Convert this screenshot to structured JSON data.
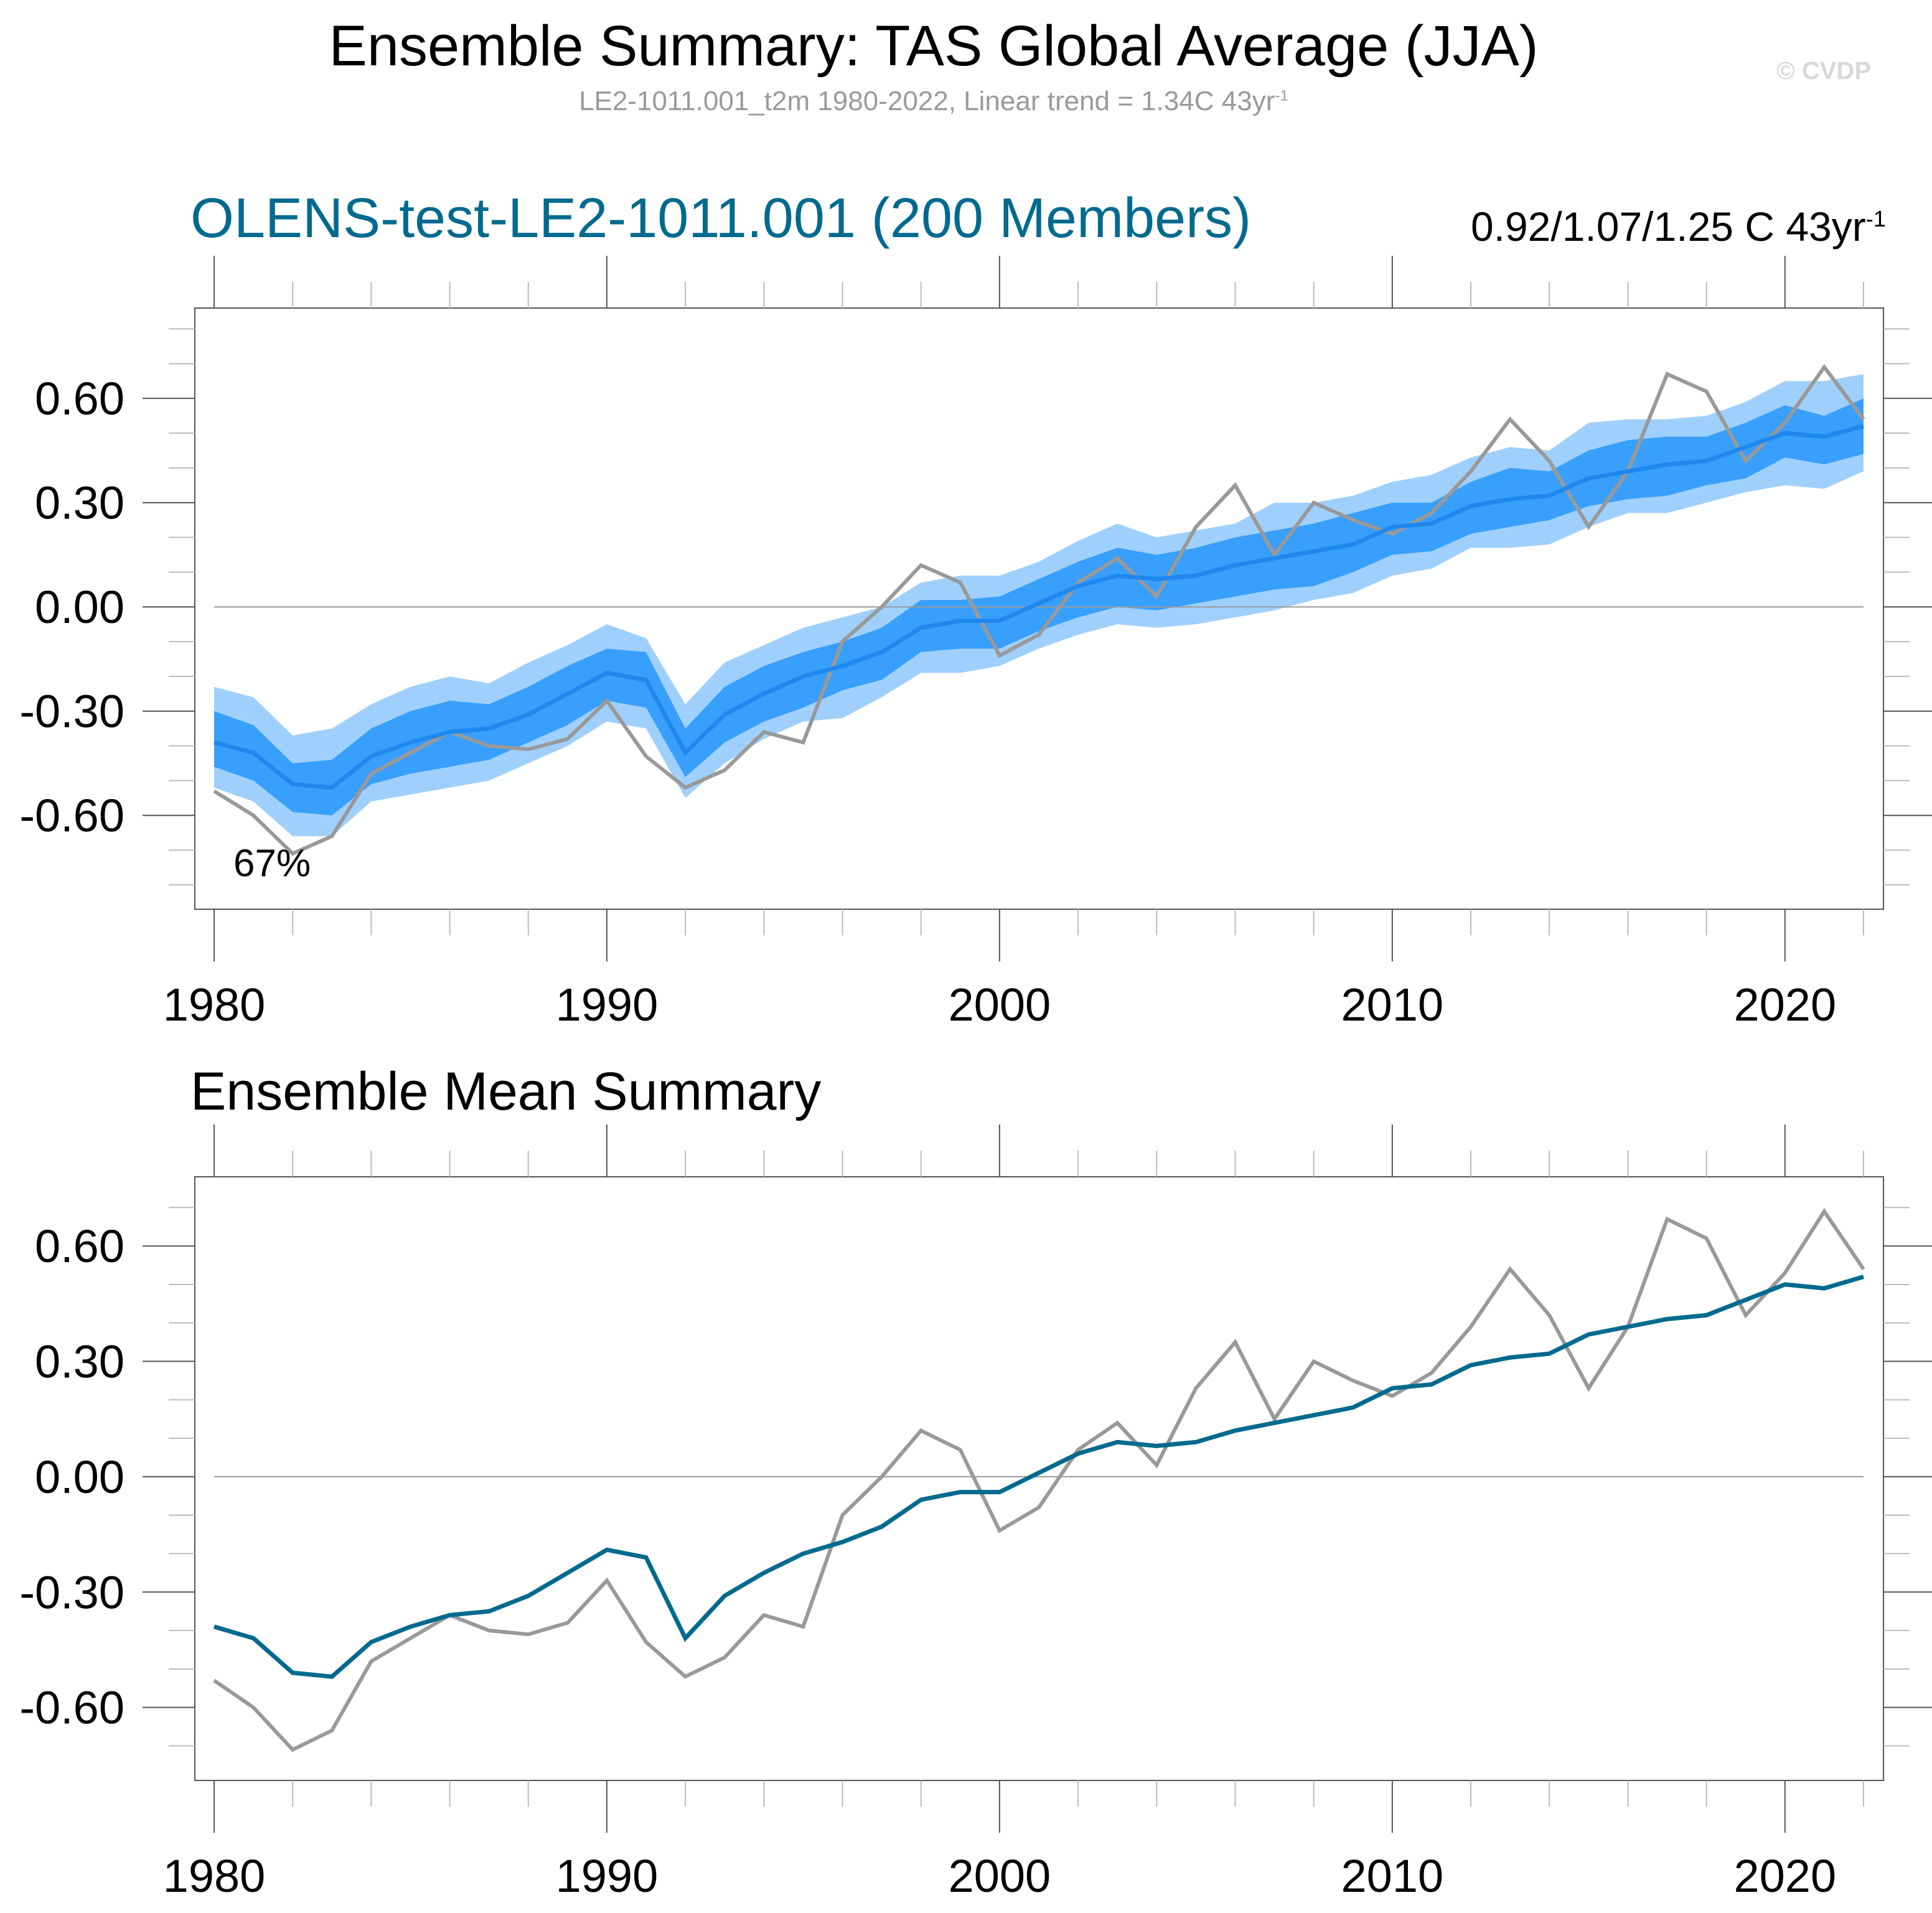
{
  "header": {
    "title": "Ensemble Summary: TAS Global Average (JJA)",
    "subtitle_text": "LE2-1011.001_t2m 1980-2022, Linear trend = 1.34C 43yr",
    "subtitle_exponent": "-1",
    "watermark": "© CVDP"
  },
  "colors": {
    "outer_band": "#9fd0fd",
    "inner_band": "#389ffc",
    "ensemble_mean_top": "#1e88f0",
    "ensemble_mean_bottom": "#006a8e",
    "observations": "#999999",
    "zero_line": "#9a9a9a",
    "panel1_title": "#006a8e"
  },
  "chart_data": [
    {
      "type": "area",
      "title": "OLENS-test-LE2-1011.001 (200 Members)",
      "trend_text": "0.92/1.07/1.25 C 43yr",
      "trend_exponent": "-1",
      "annotation": "67%",
      "xlabel": "",
      "ylabel": "",
      "xlim": [
        1980,
        2022
      ],
      "ylim": [
        -0.87,
        0.86
      ],
      "x_ticks": [
        1980,
        1990,
        2000,
        2010,
        2020
      ],
      "x_tick_labels": [
        "1980",
        "1990",
        "2000",
        "2010",
        "2020"
      ],
      "y_ticks": [
        -0.6,
        -0.3,
        0.0,
        0.3,
        0.6
      ],
      "y_tick_labels": [
        "-0.60",
        "-0.30",
        "0.00",
        "0.30",
        "0.60"
      ],
      "grid": false,
      "zero_line": true,
      "x": [
        1980,
        1981,
        1982,
        1983,
        1984,
        1985,
        1986,
        1987,
        1988,
        1989,
        1990,
        1991,
        1992,
        1993,
        1994,
        1995,
        1996,
        1997,
        1998,
        1999,
        2000,
        2001,
        2002,
        2003,
        2004,
        2005,
        2006,
        2007,
        2008,
        2009,
        2010,
        2011,
        2012,
        2013,
        2014,
        2015,
        2016,
        2017,
        2018,
        2019,
        2020,
        2021,
        2022
      ],
      "series": [
        {
          "name": "outer_upper",
          "values": [
            -0.23,
            -0.26,
            -0.37,
            -0.35,
            -0.28,
            -0.23,
            -0.2,
            -0.22,
            -0.16,
            -0.11,
            -0.05,
            -0.09,
            -0.28,
            -0.16,
            -0.11,
            -0.06,
            -0.03,
            0.0,
            0.07,
            0.09,
            0.09,
            0.13,
            0.19,
            0.24,
            0.2,
            0.22,
            0.24,
            0.3,
            0.3,
            0.32,
            0.36,
            0.38,
            0.43,
            0.46,
            0.45,
            0.53,
            0.54,
            0.54,
            0.55,
            0.59,
            0.65,
            0.65,
            0.67
          ]
        },
        {
          "name": "inner_upper",
          "values": [
            -0.3,
            -0.34,
            -0.45,
            -0.44,
            -0.35,
            -0.3,
            -0.27,
            -0.28,
            -0.23,
            -0.17,
            -0.12,
            -0.13,
            -0.35,
            -0.23,
            -0.17,
            -0.13,
            -0.1,
            -0.06,
            0.02,
            0.02,
            0.03,
            0.08,
            0.13,
            0.17,
            0.15,
            0.17,
            0.2,
            0.22,
            0.24,
            0.27,
            0.3,
            0.3,
            0.36,
            0.4,
            0.39,
            0.45,
            0.48,
            0.49,
            0.49,
            0.53,
            0.58,
            0.55,
            0.6
          ]
        },
        {
          "name": "inner_lower",
          "values": [
            -0.46,
            -0.5,
            -0.59,
            -0.6,
            -0.51,
            -0.48,
            -0.46,
            -0.44,
            -0.39,
            -0.34,
            -0.27,
            -0.29,
            -0.49,
            -0.39,
            -0.33,
            -0.29,
            -0.24,
            -0.21,
            -0.13,
            -0.12,
            -0.12,
            -0.07,
            -0.03,
            0.0,
            -0.01,
            0.01,
            0.03,
            0.05,
            0.06,
            0.1,
            0.15,
            0.16,
            0.21,
            0.23,
            0.25,
            0.29,
            0.31,
            0.32,
            0.35,
            0.37,
            0.43,
            0.41,
            0.44
          ]
        },
        {
          "name": "outer_lower",
          "values": [
            -0.52,
            -0.56,
            -0.66,
            -0.66,
            -0.56,
            -0.54,
            -0.52,
            -0.5,
            -0.45,
            -0.4,
            -0.33,
            -0.35,
            -0.55,
            -0.45,
            -0.38,
            -0.33,
            -0.32,
            -0.26,
            -0.19,
            -0.19,
            -0.17,
            -0.12,
            -0.08,
            -0.05,
            -0.06,
            -0.05,
            -0.03,
            -0.01,
            0.02,
            0.04,
            0.09,
            0.11,
            0.17,
            0.17,
            0.18,
            0.23,
            0.27,
            0.27,
            0.3,
            0.33,
            0.35,
            0.34,
            0.39
          ]
        },
        {
          "name": "ensemble_mean",
          "values": [
            -0.39,
            -0.42,
            -0.51,
            -0.52,
            -0.43,
            -0.39,
            -0.36,
            -0.35,
            -0.31,
            -0.25,
            -0.19,
            -0.21,
            -0.42,
            -0.31,
            -0.25,
            -0.2,
            -0.17,
            -0.13,
            -0.06,
            -0.04,
            -0.04,
            0.01,
            0.06,
            0.09,
            0.08,
            0.09,
            0.12,
            0.14,
            0.16,
            0.18,
            0.23,
            0.24,
            0.29,
            0.31,
            0.32,
            0.37,
            0.39,
            0.41,
            0.42,
            0.46,
            0.5,
            0.49,
            0.52
          ]
        },
        {
          "name": "observations",
          "values": [
            -0.53,
            -0.6,
            -0.71,
            -0.66,
            -0.48,
            -0.42,
            -0.36,
            -0.4,
            -0.41,
            -0.38,
            -0.27,
            -0.43,
            -0.52,
            -0.47,
            -0.36,
            -0.39,
            -0.1,
            0.0,
            0.12,
            0.07,
            -0.14,
            -0.08,
            0.07,
            0.14,
            0.03,
            0.23,
            0.35,
            0.15,
            0.3,
            0.25,
            0.21,
            0.27,
            0.39,
            0.54,
            0.42,
            0.23,
            0.39,
            0.67,
            0.62,
            0.42,
            0.53,
            0.69,
            0.54
          ]
        }
      ]
    },
    {
      "type": "line",
      "title": "Ensemble Mean Summary",
      "xlabel": "",
      "ylabel": "",
      "xlim": [
        1980,
        2022
      ],
      "ylim": [
        -0.79,
        0.78
      ],
      "x_ticks": [
        1980,
        1990,
        2000,
        2010,
        2020
      ],
      "x_tick_labels": [
        "1980",
        "1990",
        "2000",
        "2010",
        "2020"
      ],
      "y_ticks": [
        -0.6,
        -0.3,
        0.0,
        0.3,
        0.6
      ],
      "y_tick_labels": [
        "-0.60",
        "-0.30",
        "0.00",
        "0.30",
        "0.60"
      ],
      "grid": false,
      "zero_line": true,
      "x": [
        1980,
        1981,
        1982,
        1983,
        1984,
        1985,
        1986,
        1987,
        1988,
        1989,
        1990,
        1991,
        1992,
        1993,
        1994,
        1995,
        1996,
        1997,
        1998,
        1999,
        2000,
        2001,
        2002,
        2003,
        2004,
        2005,
        2006,
        2007,
        2008,
        2009,
        2010,
        2011,
        2012,
        2013,
        2014,
        2015,
        2016,
        2017,
        2018,
        2019,
        2020,
        2021,
        2022
      ],
      "series": [
        {
          "name": "ensemble_mean",
          "values": [
            -0.39,
            -0.42,
            -0.51,
            -0.52,
            -0.43,
            -0.39,
            -0.36,
            -0.35,
            -0.31,
            -0.25,
            -0.19,
            -0.21,
            -0.42,
            -0.31,
            -0.25,
            -0.2,
            -0.17,
            -0.13,
            -0.06,
            -0.04,
            -0.04,
            0.01,
            0.06,
            0.09,
            0.08,
            0.09,
            0.12,
            0.14,
            0.16,
            0.18,
            0.23,
            0.24,
            0.29,
            0.31,
            0.32,
            0.37,
            0.39,
            0.41,
            0.42,
            0.46,
            0.5,
            0.49,
            0.52
          ]
        },
        {
          "name": "observations",
          "values": [
            -0.53,
            -0.6,
            -0.71,
            -0.66,
            -0.48,
            -0.42,
            -0.36,
            -0.4,
            -0.41,
            -0.38,
            -0.27,
            -0.43,
            -0.52,
            -0.47,
            -0.36,
            -0.39,
            -0.1,
            0.0,
            0.12,
            0.07,
            -0.14,
            -0.08,
            0.07,
            0.14,
            0.03,
            0.23,
            0.35,
            0.15,
            0.3,
            0.25,
            0.21,
            0.27,
            0.39,
            0.54,
            0.42,
            0.23,
            0.39,
            0.67,
            0.62,
            0.42,
            0.53,
            0.69,
            0.54
          ]
        }
      ]
    }
  ]
}
